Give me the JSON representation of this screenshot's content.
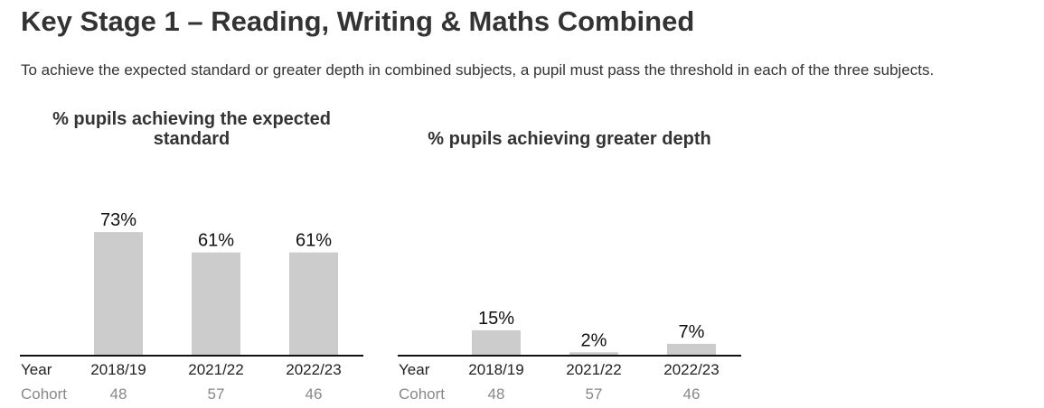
{
  "page": {
    "title": "Key Stage 1 – Reading, Writing & Maths Combined",
    "intro": "To achieve the expected standard or greater depth in combined subjects, a pupil must pass the threshold in each of the three subjects."
  },
  "row_labels": {
    "year": "Year",
    "cohort": "Cohort"
  },
  "colors": {
    "bar": "#cccccc",
    "axis": "#111111",
    "cohort_text": "#888888"
  },
  "chart_data": [
    {
      "type": "bar",
      "title": "% pupils achieving the expected standard",
      "categories": [
        "2018/19",
        "2021/22",
        "2022/23"
      ],
      "values": [
        73,
        61,
        61
      ],
      "labels": [
        "73%",
        "61%",
        "61%"
      ],
      "cohort": [
        "48",
        "57",
        "46"
      ],
      "ylim": [
        0,
        100
      ],
      "grid": false
    },
    {
      "type": "bar",
      "title": "% pupils achieving greater depth",
      "categories": [
        "2018/19",
        "2021/22",
        "2022/23"
      ],
      "values": [
        15,
        2,
        7
      ],
      "labels": [
        "15%",
        "2%",
        "7%"
      ],
      "cohort": [
        "48",
        "57",
        "46"
      ],
      "ylim": [
        0,
        100
      ],
      "grid": false
    }
  ]
}
